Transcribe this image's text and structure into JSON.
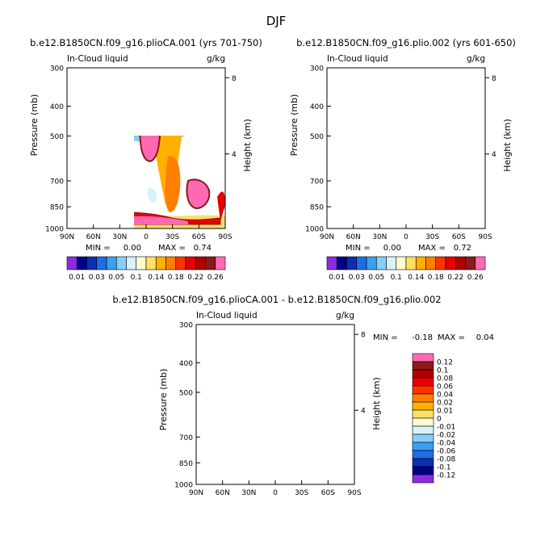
{
  "title": "DJF",
  "variable": "In-Cloud liquid",
  "units": "g/kg",
  "min_label": "MIN =",
  "max_label": "MAX =",
  "colors": {
    "top_scale": [
      "#8a2be2",
      "#00008b",
      "#0a2fb0",
      "#1e6ee8",
      "#3aa0f0",
      "#87cefa",
      "#d6f2fb",
      "#fffad0",
      "#ffe066",
      "#ffb000",
      "#ff7f00",
      "#ff3300",
      "#e60000",
      "#b00000",
      "#8b1a1a",
      "#ff69b4"
    ],
    "diff_scale": [
      "#8a2be2",
      "#00008b",
      "#0a2fb0",
      "#1e6ee8",
      "#3aa0f0",
      "#87cefa",
      "#d6f2fb",
      "#fffad0",
      "#ffe066",
      "#ffb000",
      "#ff7f00",
      "#ff3300",
      "#e60000",
      "#b00000",
      "#8b1a1a",
      "#ff69b4"
    ]
  },
  "chart_data": [
    {
      "type": "heatmap",
      "title": "b.e12.B1850CN.f09_g16.plioCA.001 (yrs 701-750)",
      "xlabel": "",
      "ylabel": "Pressure (mb)",
      "y2label": "Height (km)",
      "x_ticks": [
        "90N",
        "60N",
        "30N",
        "0",
        "30S",
        "60S",
        "90S"
      ],
      "x_range": [
        90,
        -90
      ],
      "y_ticks": [
        300,
        400,
        500,
        700,
        850,
        1000
      ],
      "y_range": [
        300,
        1000
      ],
      "height_ticks": [
        {
          "km": 8,
          "label": "8"
        },
        {
          "km": 4,
          "label": "4"
        }
      ],
      "min": "0.00",
      "max": "0.74",
      "colorbar_labels": [
        "0.01",
        "0.03",
        "0.05",
        "0.1",
        "0.14",
        "0.18",
        "0.22",
        "0.26"
      ],
      "colorbar_levels": [
        0.01,
        0.02,
        0.03,
        0.04,
        0.05,
        0.06,
        0.1,
        0.12,
        0.14,
        0.16,
        0.18,
        0.2,
        0.22,
        0.24,
        0.26
      ]
    },
    {
      "type": "heatmap",
      "title": "b.e12.B1850CN.f09_g16.plio.002 (yrs 601-650)",
      "xlabel": "",
      "ylabel": "Pressure (mb)",
      "y2label": "Height (km)",
      "x_ticks": [
        "90N",
        "60N",
        "30N",
        "0",
        "30S",
        "60S",
        "90S"
      ],
      "x_range": [
        90,
        -90
      ],
      "y_ticks": [
        300,
        400,
        500,
        700,
        850,
        1000
      ],
      "y_range": [
        300,
        1000
      ],
      "height_ticks": [
        {
          "km": 8,
          "label": "8"
        },
        {
          "km": 4,
          "label": "4"
        }
      ],
      "min": "0.00",
      "max": "0.72",
      "colorbar_labels": [
        "0.01",
        "0.03",
        "0.05",
        "0.1",
        "0.14",
        "0.18",
        "0.22",
        "0.26"
      ],
      "colorbar_levels": [
        0.01,
        0.02,
        0.03,
        0.04,
        0.05,
        0.06,
        0.1,
        0.12,
        0.14,
        0.16,
        0.18,
        0.2,
        0.22,
        0.24,
        0.26
      ]
    },
    {
      "type": "heatmap",
      "title": "b.e12.B1850CN.f09_g16.plioCA.001 - b.e12.B1850CN.f09_g16.plio.002",
      "xlabel": "",
      "ylabel": "Pressure (mb)",
      "y2label": "Height (km)",
      "x_ticks": [
        "90N",
        "60N",
        "30N",
        "0",
        "30S",
        "60S",
        "90S"
      ],
      "x_range": [
        90,
        -90
      ],
      "y_ticks": [
        300,
        400,
        500,
        700,
        850,
        1000
      ],
      "y_range": [
        300,
        1000
      ],
      "height_ticks": [
        {
          "km": 8,
          "label": "8"
        },
        {
          "km": 4,
          "label": "4"
        }
      ],
      "min": "-0.18",
      "max": "0.04",
      "colorbar_labels": [
        "0.12",
        "0.1",
        "0.08",
        "0.06",
        "0.04",
        "0.02",
        "0.01",
        "0",
        "-0.01",
        "-0.02",
        "-0.04",
        "-0.06",
        "-0.08",
        "-0.1",
        "-0.12"
      ]
    }
  ]
}
